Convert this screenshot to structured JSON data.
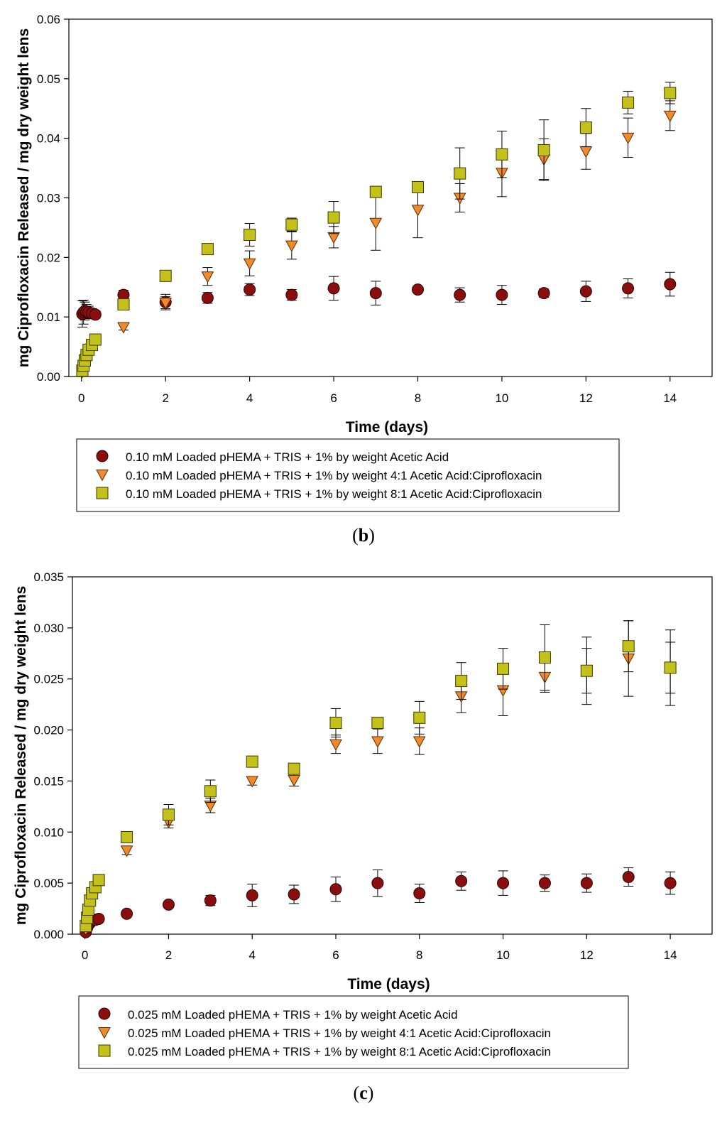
{
  "chart_data": [
    {
      "type": "scatter",
      "caption": [
        "(",
        "b",
        ")"
      ],
      "xlabel": "Time (days)",
      "ylabel": "mg Ciprofloxacin Released / mg dry weight lens",
      "xlim": [
        -0.3,
        15
      ],
      "ylim": [
        0,
        0.06
      ],
      "x_ticks": [
        "0",
        "2",
        "4",
        "6",
        "8",
        "10",
        "12",
        "14"
      ],
      "y_ticks": [
        "0.00",
        "0.01",
        "0.02",
        "0.03",
        "0.04",
        "0.05",
        "0.06"
      ],
      "grid": false,
      "legend_placement": "below plot",
      "series": [
        {
          "name": "0.10 mM Loaded pHEMA + TRIS + 1% by weight Acetic Acid",
          "marker": "circle",
          "color": "#8b0e0e",
          "points": [
            {
              "x": 0.02,
              "y": 0.0105,
              "err": 0.0022
            },
            {
              "x": 0.05,
              "y": 0.0108,
              "err": 0.002
            },
            {
              "x": 0.08,
              "y": 0.011,
              "err": 0.0015
            },
            {
              "x": 0.12,
              "y": 0.0109,
              "err": 0.0012
            },
            {
              "x": 0.17,
              "y": 0.0108,
              "err": 0.001
            },
            {
              "x": 0.25,
              "y": 0.0106,
              "err": 0.0008
            },
            {
              "x": 0.33,
              "y": 0.0104,
              "err": 0.0006
            },
            {
              "x": 1,
              "y": 0.0137,
              "err": 0.0008
            },
            {
              "x": 2,
              "y": 0.0125,
              "err": 0.0013
            },
            {
              "x": 3,
              "y": 0.0132,
              "err": 0.0009
            },
            {
              "x": 4,
              "y": 0.0146,
              "err": 0.001
            },
            {
              "x": 5,
              "y": 0.0137,
              "err": 0.0009
            },
            {
              "x": 6,
              "y": 0.0148,
              "err": 0.002
            },
            {
              "x": 7,
              "y": 0.014,
              "err": 0.002
            },
            {
              "x": 8,
              "y": 0.0146,
              "err": 0.0005
            },
            {
              "x": 9,
              "y": 0.0137,
              "err": 0.0012
            },
            {
              "x": 10,
              "y": 0.0137,
              "err": 0.0016
            },
            {
              "x": 11,
              "y": 0.014,
              "err": 0.0007
            },
            {
              "x": 12,
              "y": 0.0143,
              "err": 0.0017
            },
            {
              "x": 13,
              "y": 0.0148,
              "err": 0.0016
            },
            {
              "x": 14,
              "y": 0.0155,
              "err": 0.002
            }
          ]
        },
        {
          "name": "0.10 mM Loaded pHEMA + TRIS + 1% by weight 4:1 Acetic Acid:Ciprofloxacin",
          "marker": "triangle-down",
          "color": "#f08a2c",
          "points": [
            {
              "x": 0.02,
              "y": 0.0008,
              "err": 0
            },
            {
              "x": 0.05,
              "y": 0.0015,
              "err": 0
            },
            {
              "x": 0.08,
              "y": 0.0022,
              "err": 0
            },
            {
              "x": 0.12,
              "y": 0.003,
              "err": 0
            },
            {
              "x": 0.17,
              "y": 0.0038,
              "err": 0
            },
            {
              "x": 0.25,
              "y": 0.0046,
              "err": 0
            },
            {
              "x": 0.33,
              "y": 0.0055,
              "err": 0
            },
            {
              "x": 1,
              "y": 0.0083,
              "err": 0.0005
            },
            {
              "x": 2,
              "y": 0.0124,
              "err": 0.001
            },
            {
              "x": 3,
              "y": 0.0168,
              "err": 0.0015
            },
            {
              "x": 4,
              "y": 0.019,
              "err": 0.0021
            },
            {
              "x": 5,
              "y": 0.022,
              "err": 0.0023
            },
            {
              "x": 6,
              "y": 0.0234,
              "err": 0.0018
            },
            {
              "x": 7,
              "y": 0.0258,
              "err": 0.0046
            },
            {
              "x": 8,
              "y": 0.028,
              "err": 0.0047
            },
            {
              "x": 9,
              "y": 0.03,
              "err": 0.0024
            },
            {
              "x": 10,
              "y": 0.0342,
              "err": 0.004
            },
            {
              "x": 11,
              "y": 0.0365,
              "err": 0.0034
            },
            {
              "x": 12,
              "y": 0.0378,
              "err": 0.003
            },
            {
              "x": 13,
              "y": 0.0401,
              "err": 0.0033
            },
            {
              "x": 14,
              "y": 0.0438,
              "err": 0.0025
            }
          ]
        },
        {
          "name": "0.10 mM Loaded pHEMA + TRIS + 1% by weight 8:1 Acetic Acid:Ciprofloxacin",
          "marker": "square",
          "color": "#c4c11a",
          "points": [
            {
              "x": 0.02,
              "y": 0.001,
              "err": 0
            },
            {
              "x": 0.05,
              "y": 0.0018,
              "err": 0
            },
            {
              "x": 0.08,
              "y": 0.0027,
              "err": 0
            },
            {
              "x": 0.12,
              "y": 0.0036,
              "err": 0
            },
            {
              "x": 0.17,
              "y": 0.0045,
              "err": 0
            },
            {
              "x": 0.25,
              "y": 0.0053,
              "err": 0
            },
            {
              "x": 0.33,
              "y": 0.0062,
              "err": 0
            },
            {
              "x": 1,
              "y": 0.0121,
              "err": 0
            },
            {
              "x": 2,
              "y": 0.0169,
              "err": 0
            },
            {
              "x": 3,
              "y": 0.0214,
              "err": 0
            },
            {
              "x": 4,
              "y": 0.0238,
              "err": 0.0019
            },
            {
              "x": 5,
              "y": 0.0255,
              "err": 0.0011
            },
            {
              "x": 6,
              "y": 0.0267,
              "err": 0.0027
            },
            {
              "x": 7,
              "y": 0.031,
              "err": 0
            },
            {
              "x": 8,
              "y": 0.0318,
              "err": 0.0009
            },
            {
              "x": 9,
              "y": 0.0341,
              "err": 0.0043
            },
            {
              "x": 10,
              "y": 0.0373,
              "err": 0.0039
            },
            {
              "x": 11,
              "y": 0.038,
              "err": 0.0051
            },
            {
              "x": 12,
              "y": 0.0418,
              "err": 0.0032
            },
            {
              "x": 13,
              "y": 0.046,
              "err": 0.0019
            },
            {
              "x": 14,
              "y": 0.0476,
              "err": 0.0018
            }
          ]
        }
      ]
    },
    {
      "type": "scatter",
      "caption": [
        "(",
        "c",
        ")"
      ],
      "xlabel": "Time (days)",
      "ylabel": "mg Ciprofloxacin Released / mg dry weight lens",
      "xlim": [
        -0.3,
        15
      ],
      "ylim": [
        0,
        0.035
      ],
      "x_ticks": [
        "0",
        "2",
        "4",
        "6",
        "8",
        "10",
        "12",
        "14"
      ],
      "y_ticks": [
        "0.000",
        "0.005",
        "0.010",
        "0.015",
        "0.020",
        "0.025",
        "0.030",
        "0.035"
      ],
      "grid": false,
      "legend_placement": "below plot",
      "series": [
        {
          "name": "0.025 mM Loaded pHEMA + TRIS + 1% by weight Acetic Acid",
          "marker": "circle",
          "color": "#8b0e0e",
          "points": [
            {
              "x": 0.02,
              "y": 0.0002,
              "err": 0
            },
            {
              "x": 0.05,
              "y": 0.0006,
              "err": 0
            },
            {
              "x": 0.08,
              "y": 0.0009,
              "err": 0
            },
            {
              "x": 0.12,
              "y": 0.0011,
              "err": 0
            },
            {
              "x": 0.17,
              "y": 0.0013,
              "err": 0
            },
            {
              "x": 0.25,
              "y": 0.0014,
              "err": 0
            },
            {
              "x": 0.33,
              "y": 0.0015,
              "err": 0
            },
            {
              "x": 1,
              "y": 0.002,
              "err": 0
            },
            {
              "x": 2,
              "y": 0.0029,
              "err": 0
            },
            {
              "x": 3,
              "y": 0.0033,
              "err": 0.0005
            },
            {
              "x": 4,
              "y": 0.0038,
              "err": 0.0011
            },
            {
              "x": 5,
              "y": 0.0039,
              "err": 0.0009
            },
            {
              "x": 6,
              "y": 0.0044,
              "err": 0.0012
            },
            {
              "x": 7,
              "y": 0.005,
              "err": 0.0013
            },
            {
              "x": 8,
              "y": 0.004,
              "err": 0.0009
            },
            {
              "x": 9,
              "y": 0.0052,
              "err": 0.0009
            },
            {
              "x": 10,
              "y": 0.005,
              "err": 0.0012
            },
            {
              "x": 11,
              "y": 0.005,
              "err": 0.0008
            },
            {
              "x": 12,
              "y": 0.005,
              "err": 0.0009
            },
            {
              "x": 13,
              "y": 0.0056,
              "err": 0.0009
            },
            {
              "x": 14,
              "y": 0.005,
              "err": 0.0011
            }
          ]
        },
        {
          "name": "0.025 mM Loaded pHEMA + TRIS + 1% by weight 4:1 Acetic Acid:Ciprofloxacin",
          "marker": "triangle-down",
          "color": "#f08a2c",
          "points": [
            {
              "x": 0.02,
              "y": 0.0005,
              "err": 0
            },
            {
              "x": 0.05,
              "y": 0.0012,
              "err": 0
            },
            {
              "x": 0.08,
              "y": 0.0019,
              "err": 0
            },
            {
              "x": 0.12,
              "y": 0.0027,
              "err": 0
            },
            {
              "x": 0.17,
              "y": 0.0035,
              "err": 0
            },
            {
              "x": 0.25,
              "y": 0.0042,
              "err": 0
            },
            {
              "x": 0.33,
              "y": 0.0049,
              "err": 0
            },
            {
              "x": 1,
              "y": 0.0082,
              "err": 0.0004
            },
            {
              "x": 2,
              "y": 0.011,
              "err": 0.0006
            },
            {
              "x": 3,
              "y": 0.0126,
              "err": 0.0007
            },
            {
              "x": 4,
              "y": 0.015,
              "err": 0.0004
            },
            {
              "x": 5,
              "y": 0.0151,
              "err": 0.0006
            },
            {
              "x": 6,
              "y": 0.0186,
              "err": 0.0009
            },
            {
              "x": 7,
              "y": 0.0189,
              "err": 0.0012
            },
            {
              "x": 8,
              "y": 0.0189,
              "err": 0.0013
            },
            {
              "x": 9,
              "y": 0.0233,
              "err": 0.0016
            },
            {
              "x": 10,
              "y": 0.0239,
              "err": 0.0025
            },
            {
              "x": 11,
              "y": 0.0252,
              "err": 0.0015
            },
            {
              "x": 12,
              "y": 0.0258,
              "err": 0.0022
            },
            {
              "x": 13,
              "y": 0.027,
              "err": 0.0037
            },
            {
              "x": 14,
              "y": 0.0261,
              "err": 0.0025
            }
          ]
        },
        {
          "name": "0.025 mM Loaded pHEMA + TRIS + 1% by weight 8:1 Acetic Acid:Ciprofloxacin",
          "marker": "square",
          "color": "#c4c11a",
          "points": [
            {
              "x": 0.02,
              "y": 0.0008,
              "err": 0
            },
            {
              "x": 0.05,
              "y": 0.0016,
              "err": 0
            },
            {
              "x": 0.08,
              "y": 0.0024,
              "err": 0
            },
            {
              "x": 0.12,
              "y": 0.0033,
              "err": 0
            },
            {
              "x": 0.17,
              "y": 0.004,
              "err": 0
            },
            {
              "x": 0.25,
              "y": 0.0046,
              "err": 0
            },
            {
              "x": 0.33,
              "y": 0.0053,
              "err": 0
            },
            {
              "x": 1,
              "y": 0.0095,
              "err": 0
            },
            {
              "x": 2,
              "y": 0.0117,
              "err": 0.001
            },
            {
              "x": 3,
              "y": 0.014,
              "err": 0.0011
            },
            {
              "x": 4,
              "y": 0.0169,
              "err": 0
            },
            {
              "x": 5,
              "y": 0.0162,
              "err": 0
            },
            {
              "x": 6,
              "y": 0.0207,
              "err": 0.0014
            },
            {
              "x": 7,
              "y": 0.0207,
              "err": 0
            },
            {
              "x": 8,
              "y": 0.0212,
              "err": 0.0016
            },
            {
              "x": 9,
              "y": 0.0248,
              "err": 0.0018
            },
            {
              "x": 10,
              "y": 0.026,
              "err": 0.002
            },
            {
              "x": 11,
              "y": 0.0271,
              "err": 0.0032
            },
            {
              "x": 12,
              "y": 0.0258,
              "err": 0.0033
            },
            {
              "x": 13,
              "y": 0.0282,
              "err": 0.0025
            },
            {
              "x": 14,
              "y": 0.0261,
              "err": 0.0037
            }
          ]
        }
      ]
    }
  ]
}
